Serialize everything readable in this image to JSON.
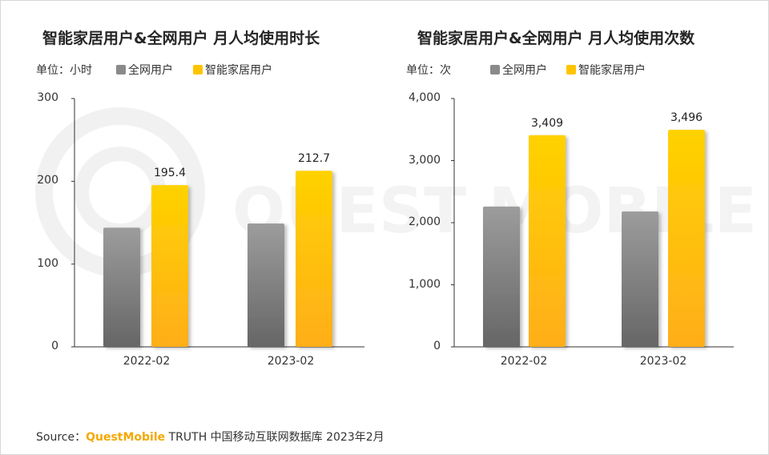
{
  "footer": {
    "source_label": "Source：",
    "brand": "QuestMobile",
    "text": "TRUTH 中国移动互联网数据库 2023年2月"
  },
  "watermark_text": "QUEST MOBILE",
  "colors": {
    "gray_top": "#9c9c9c",
    "gray_bottom": "#666666",
    "gold_top": "#ffd200",
    "gold_bottom": "#ffae1a"
  },
  "chart_data": [
    {
      "type": "bar",
      "title": "智能家居用户&全网用户 月人均使用时长",
      "unit_label": "单位：小时",
      "categories": [
        "2022-02",
        "2023-02"
      ],
      "yticks": [
        "0",
        "100",
        "200",
        "300"
      ],
      "ylim": [
        0,
        300
      ],
      "series": [
        {
          "name": "全网用户",
          "values": [
            144,
            149
          ],
          "labels": [
            "",
            ""
          ]
        },
        {
          "name": "智能家居用户",
          "values": [
            195.4,
            212.7
          ],
          "labels": [
            "195.4",
            "212.7"
          ]
        }
      ]
    },
    {
      "type": "bar",
      "title": "智能家居用户&全网用户 月人均使用次数",
      "unit_label": "单位：次",
      "categories": [
        "2022-02",
        "2023-02"
      ],
      "yticks": [
        "0",
        "1,000",
        "2,000",
        "3,000",
        "4,000"
      ],
      "ylim": [
        0,
        4000
      ],
      "series": [
        {
          "name": "全网用户",
          "values": [
            2260,
            2180
          ],
          "labels": [
            "",
            ""
          ]
        },
        {
          "name": "智能家居用户",
          "values": [
            3409,
            3496
          ],
          "labels": [
            "3,409",
            "3,496"
          ]
        }
      ]
    }
  ]
}
